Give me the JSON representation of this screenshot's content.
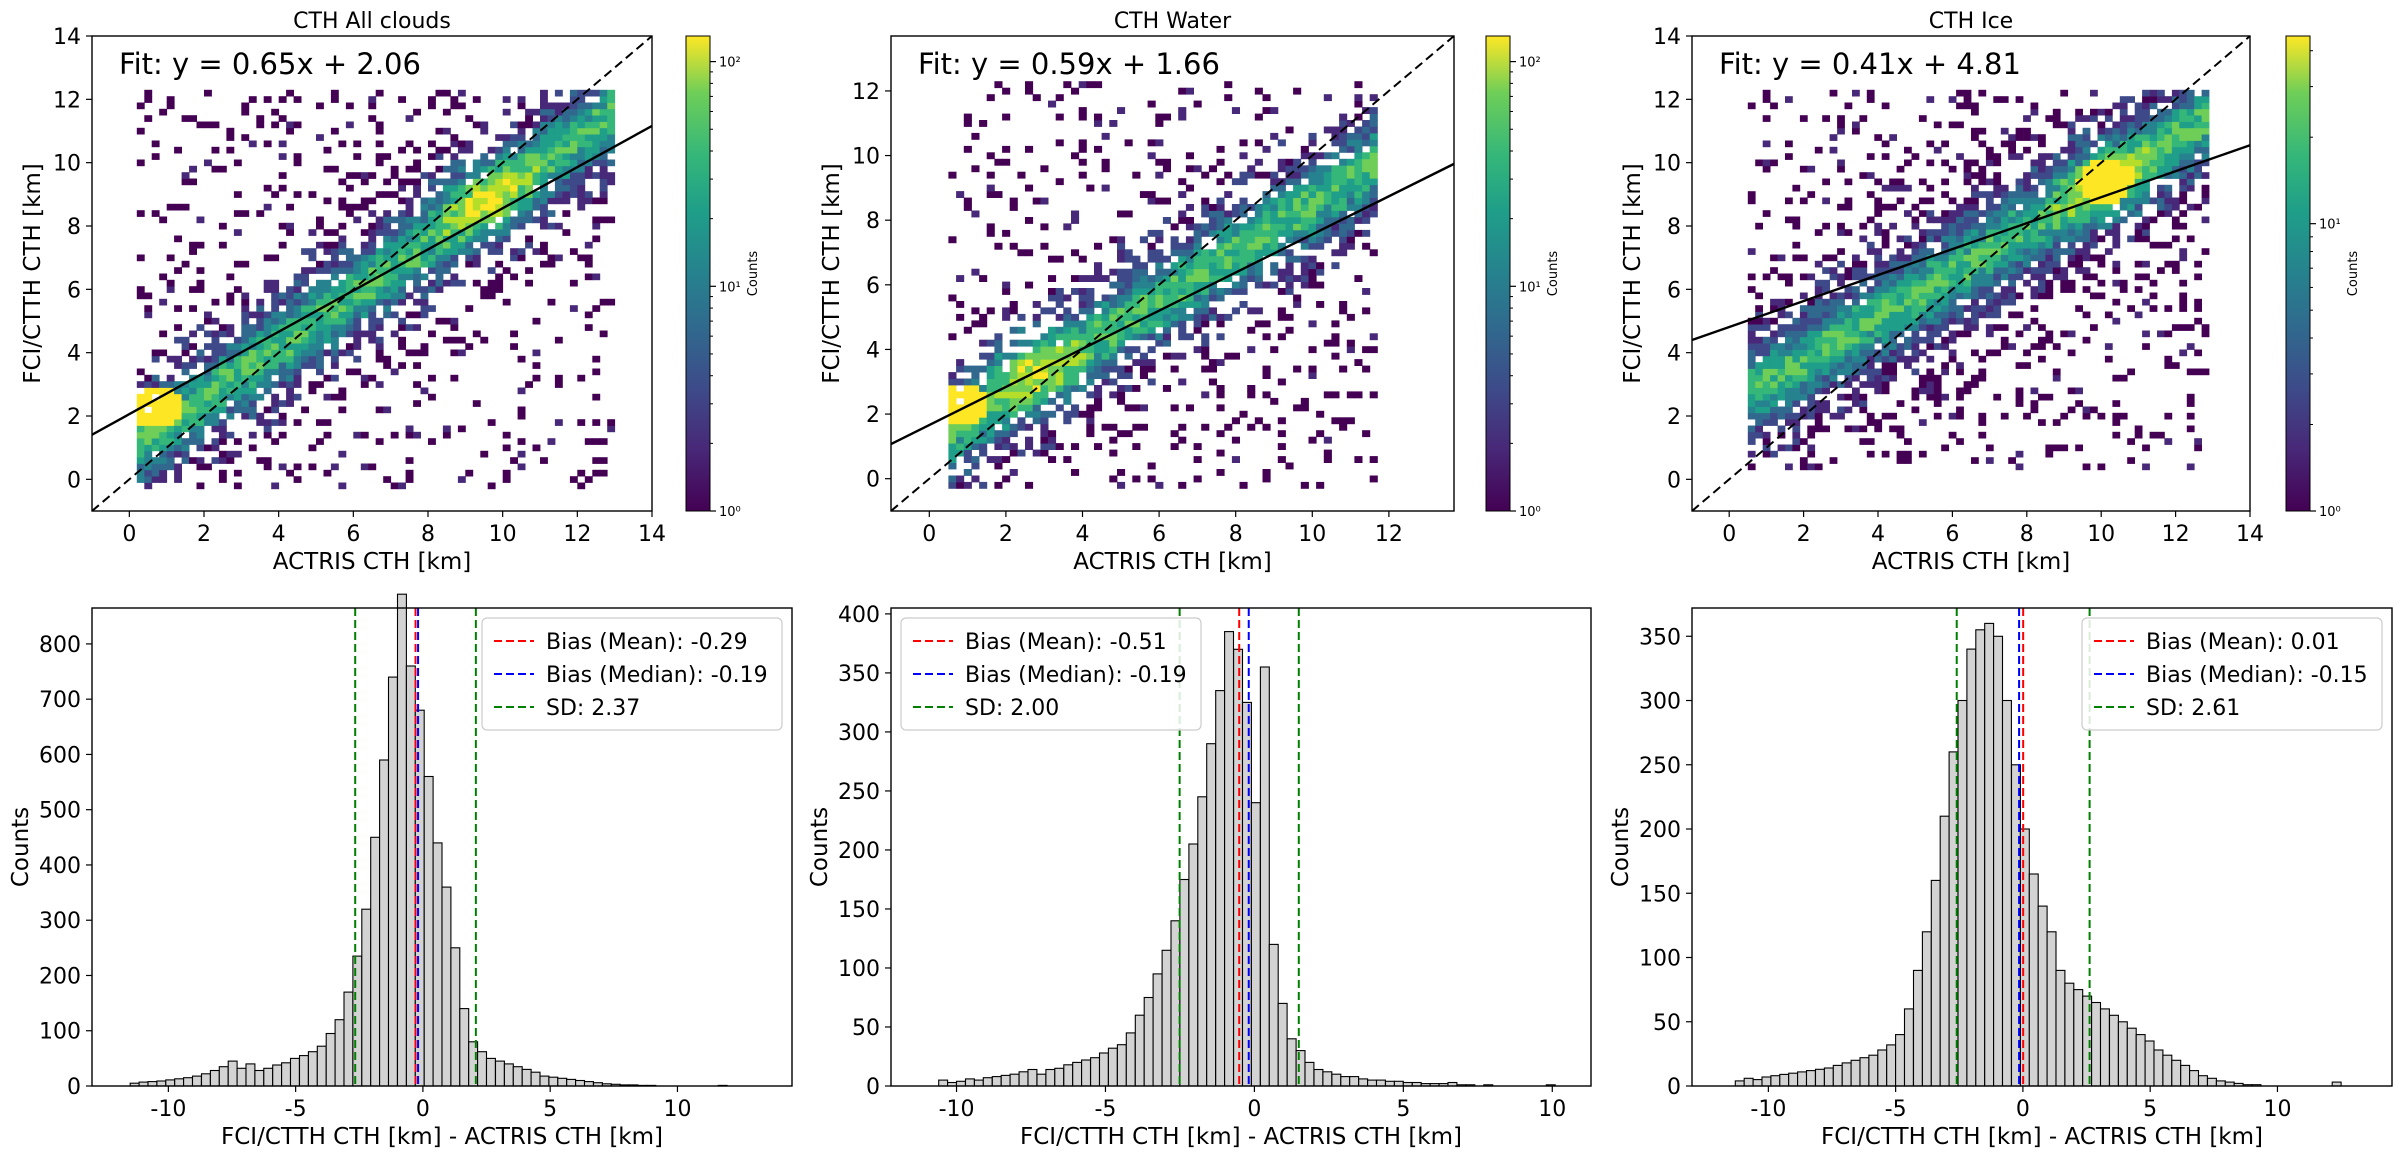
{
  "figure": {
    "type": "multi-panel"
  },
  "chart_data": [
    {
      "type": "heatmap",
      "title": "CTH All clouds",
      "xlabel": "ACTRIS CTH [km]",
      "ylabel": "FCI/CTTH CTH [km]",
      "xlim": [
        -1,
        14
      ],
      "ylim": [
        -1,
        14
      ],
      "xticks": [
        0,
        2,
        4,
        6,
        8,
        10,
        12,
        14
      ],
      "yticks": [
        0,
        2,
        4,
        6,
        8,
        10,
        12,
        14
      ],
      "fit_text": "Fit: y = 0.65x + 2.06",
      "fit": {
        "slope": 0.65,
        "intercept": 2.06
      },
      "identity_line": true,
      "colorbar": {
        "label": "Counts",
        "scale": "log",
        "ticks": [
          "10⁰",
          "10¹",
          "10²"
        ],
        "range": [
          1,
          130
        ]
      },
      "density": {
        "slope": 0.82,
        "intercept": 0.9,
        "x_range": [
          0.2,
          12.8
        ],
        "y_range": [
          -0.3,
          12.2
        ],
        "spread": 1.4,
        "hot_spot": [
          0.6,
          2.2
        ],
        "peak_region": [
          9.5,
          8.8
        ]
      }
    },
    {
      "type": "heatmap",
      "title": "CTH Water",
      "xlabel": "ACTRIS CTH [km]",
      "ylabel": "FCI/CTTH CTH [km]",
      "xlim": [
        -1,
        13.7
      ],
      "ylim": [
        -1,
        13.7
      ],
      "xticks": [
        0,
        2,
        4,
        6,
        8,
        10,
        12
      ],
      "yticks": [
        0,
        2,
        4,
        6,
        8,
        10,
        12
      ],
      "fit_text": "Fit: y = 0.59x + 1.66",
      "fit": {
        "slope": 0.59,
        "intercept": 1.66
      },
      "identity_line": true,
      "colorbar": {
        "label": "Counts",
        "scale": "log",
        "ticks": [
          "10⁰",
          "10¹",
          "10²"
        ],
        "range": [
          1,
          130
        ]
      },
      "density": {
        "slope": 0.75,
        "intercept": 1.0,
        "x_range": [
          0.5,
          11.5
        ],
        "y_range": [
          -0.3,
          12.2
        ],
        "spread": 1.2,
        "hot_spot": [
          0.8,
          2.2
        ],
        "peak_region": [
          2.5,
          3.5
        ]
      }
    },
    {
      "type": "heatmap",
      "title": "CTH Ice",
      "xlabel": "ACTRIS CTH [km]",
      "ylabel": "FCI/CTTH CTH [km]",
      "xlim": [
        -1,
        14
      ],
      "ylim": [
        -1,
        14
      ],
      "xticks": [
        0,
        2,
        4,
        6,
        8,
        10,
        12,
        14
      ],
      "yticks": [
        0,
        2,
        4,
        6,
        8,
        10,
        12,
        14
      ],
      "fit_text": "Fit: y = 0.41x + 4.81",
      "fit": {
        "slope": 0.41,
        "intercept": 4.81
      },
      "identity_line": true,
      "colorbar": {
        "label": "Counts",
        "scale": "log",
        "ticks": [
          "10⁰",
          "10¹"
        ],
        "range": [
          1,
          45
        ]
      },
      "density": {
        "slope": 0.7,
        "intercept": 2.3,
        "x_range": [
          0.5,
          12.8
        ],
        "y_range": [
          0.3,
          12.2
        ],
        "spread": 1.6,
        "hot_spot": [
          10,
          9.3
        ],
        "peak_region": [
          10,
          9.3
        ]
      }
    },
    {
      "type": "bar",
      "subtype": "histogram",
      "xlabel": "FCI/CTTH CTH [km] - ACTRIS CTH [km]",
      "ylabel": "Counts",
      "xlim": [
        -13,
        14.5
      ],
      "ylim": [
        0,
        865
      ],
      "xticks": [
        -10,
        -5,
        0,
        5,
        10
      ],
      "yticks": [
        0,
        100,
        200,
        300,
        400,
        500,
        600,
        700,
        800
      ],
      "bin_start": -11.5,
      "bin_width": 0.35,
      "counts": [
        5,
        7,
        8,
        9,
        11,
        13,
        15,
        18,
        22,
        28,
        35,
        45,
        32,
        40,
        28,
        32,
        38,
        42,
        50,
        55,
        62,
        72,
        95,
        120,
        170,
        235,
        320,
        450,
        590,
        740,
        890,
        760,
        680,
        560,
        440,
        360,
        250,
        140,
        80,
        62,
        50,
        45,
        40,
        35,
        30,
        25,
        18,
        16,
        14,
        12,
        10,
        8,
        6,
        4,
        3,
        2,
        2,
        1,
        1,
        0,
        0,
        0,
        0,
        0,
        0,
        0,
        1
      ],
      "lines": [
        {
          "label": "Bias (Mean): -0.29",
          "value": -0.29,
          "color": "#ff0000"
        },
        {
          "label": "Bias (Median): -0.19",
          "value": -0.19,
          "color": "#0000ff"
        },
        {
          "label": "SD: 2.37",
          "value": [
            -2.66,
            2.08
          ],
          "color": "#008000"
        }
      ]
    },
    {
      "type": "bar",
      "subtype": "histogram",
      "xlabel": "FCI/CTTH CTH [km] - ACTRIS CTH [km]",
      "ylabel": "Counts",
      "xlim": [
        -12.2,
        11.3
      ],
      "ylim": [
        0,
        405
      ],
      "xticks": [
        -10,
        -5,
        0,
        5,
        10
      ],
      "yticks": [
        0,
        50,
        100,
        150,
        200,
        250,
        300,
        350,
        400
      ],
      "bin_start": -10.6,
      "bin_width": 0.3,
      "counts": [
        5,
        3,
        4,
        6,
        5,
        7,
        8,
        9,
        10,
        12,
        14,
        10,
        14,
        15,
        18,
        20,
        22,
        24,
        28,
        32,
        35,
        45,
        60,
        75,
        95,
        115,
        140,
        175,
        205,
        245,
        290,
        335,
        385,
        370,
        325,
        240,
        355,
        120,
        70,
        40,
        30,
        20,
        14,
        12,
        10,
        8,
        8,
        6,
        5,
        5,
        4,
        4,
        3,
        3,
        2,
        2,
        2,
        3,
        1,
        1,
        0,
        1,
        0,
        0,
        0,
        0,
        0,
        0,
        1
      ],
      "lines": [
        {
          "label": "Bias (Mean): -0.51",
          "value": -0.51,
          "color": "#ff0000"
        },
        {
          "label": "Bias (Median): -0.19",
          "value": -0.19,
          "color": "#0000ff"
        },
        {
          "label": "SD: 2.00",
          "value": [
            -2.51,
            1.49
          ],
          "color": "#008000"
        }
      ]
    },
    {
      "type": "bar",
      "subtype": "histogram",
      "xlabel": "FCI/CTTH CTH [km] - ACTRIS CTH [km]",
      "ylabel": "Counts",
      "xlim": [
        -13,
        14.5
      ],
      "ylim": [
        0,
        372
      ],
      "xticks": [
        -10,
        -5,
        0,
        5,
        10
      ],
      "yticks": [
        0,
        50,
        100,
        150,
        200,
        250,
        300,
        350
      ],
      "bin_start": -11.3,
      "bin_width": 0.35,
      "counts": [
        4,
        6,
        5,
        7,
        8,
        9,
        10,
        11,
        12,
        13,
        14,
        16,
        18,
        20,
        22,
        24,
        28,
        32,
        40,
        60,
        90,
        120,
        160,
        210,
        260,
        300,
        340,
        355,
        360,
        350,
        300,
        250,
        200,
        165,
        140,
        120,
        90,
        80,
        75,
        70,
        65,
        60,
        55,
        50,
        45,
        40,
        35,
        28,
        24,
        20,
        16,
        12,
        8,
        6,
        4,
        3,
        2,
        1,
        1,
        0,
        0,
        0,
        0,
        0,
        0,
        0,
        0,
        3
      ],
      "lines": [
        {
          "label": "Bias (Mean): 0.01",
          "value": 0.01,
          "color": "#ff0000"
        },
        {
          "label": "Bias (Median): -0.15",
          "value": -0.15,
          "color": "#0000ff"
        },
        {
          "label": "SD: 2.61",
          "value": [
            -2.6,
            2.62
          ],
          "color": "#008000"
        }
      ]
    }
  ]
}
